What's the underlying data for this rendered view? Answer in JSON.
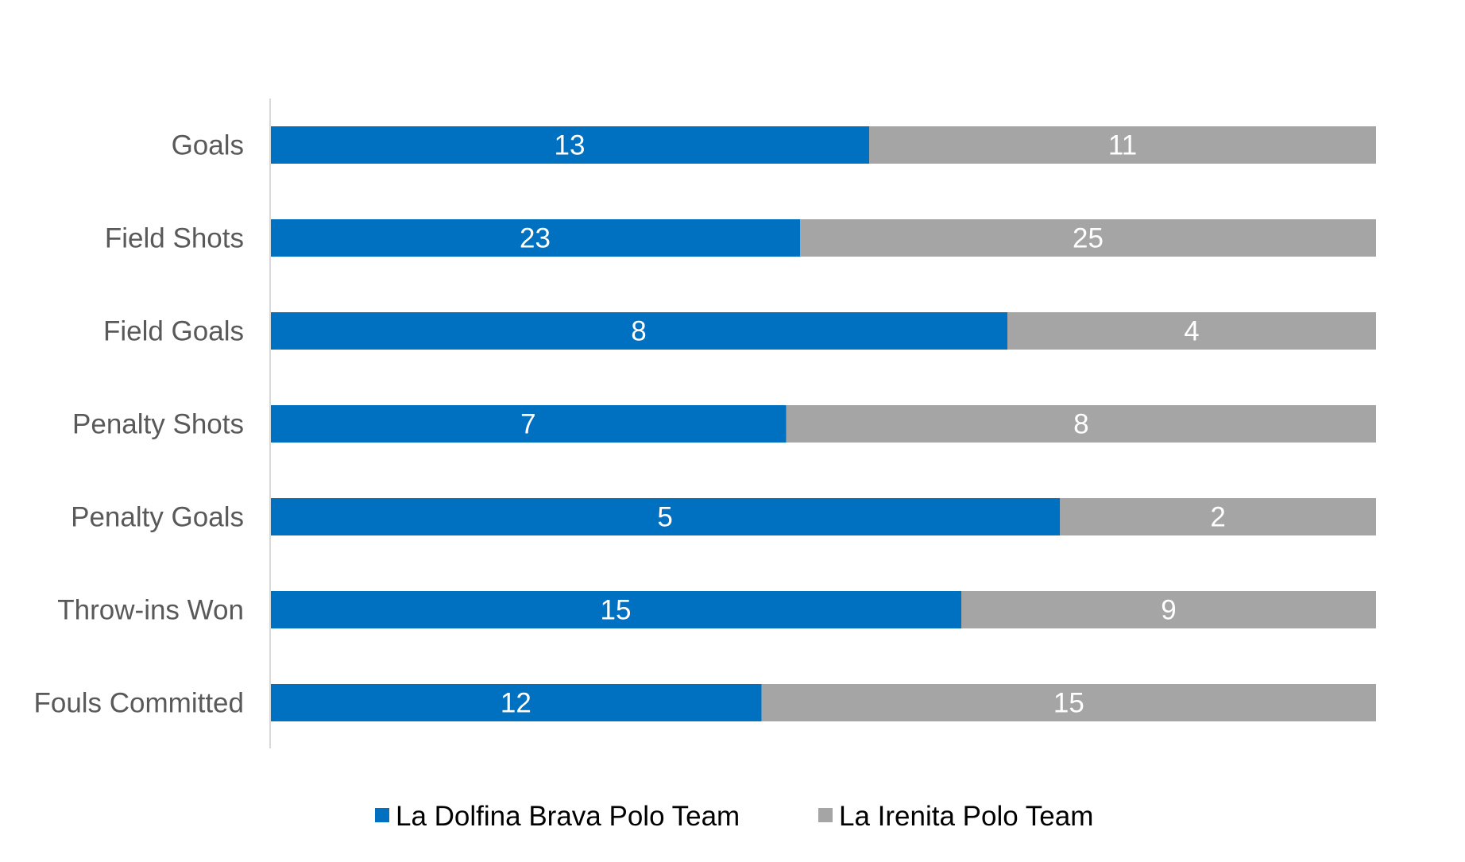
{
  "chart_data": {
    "type": "bar",
    "orientation": "horizontal",
    "stacking": "percent",
    "title": "",
    "xlabel": "",
    "ylabel": "",
    "xlim": [
      0,
      100
    ],
    "grid": false,
    "legend_position": "bottom",
    "categories": [
      "Goals",
      "Field Shots",
      "Field Goals",
      "Penalty Shots",
      "Penalty Goals",
      "Throw-ins Won",
      "Fouls Committed"
    ],
    "series": [
      {
        "name": "La Dolfina Brava Polo Team",
        "color": "#0070C0",
        "values": [
          13,
          23,
          8,
          7,
          5,
          15,
          12
        ]
      },
      {
        "name": "La Irenita Polo Team",
        "color": "#A5A5A5",
        "values": [
          11,
          25,
          4,
          8,
          2,
          9,
          15
        ]
      }
    ]
  }
}
